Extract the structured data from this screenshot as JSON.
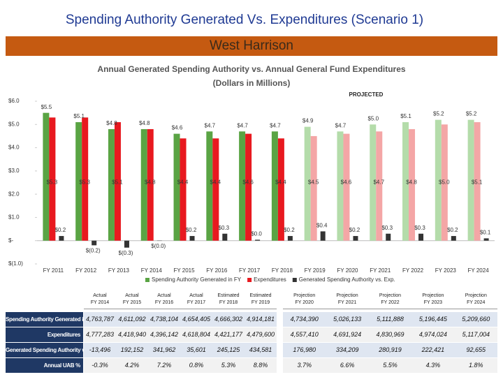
{
  "slide_title": "Spending Authority Generated Vs. Expenditures (Scenario 1)",
  "banner": "West Harrison",
  "chart_data": {
    "type": "bar",
    "title": "Annual Generated Spending Authority vs. Annual General Fund Expenditures",
    "subtitle": "(Dollars in Millions)",
    "annotation": "PROJECTED",
    "categories": [
      "FY 2011",
      "FY 2012",
      "FY 2013",
      "FY 2014",
      "FY 2015",
      "FY 2016",
      "FY 2017",
      "FY 2018",
      "FY 2019",
      "FY 2020",
      "FY 2021",
      "FY 2022",
      "FY 2023",
      "FY 2024"
    ],
    "series": [
      {
        "name": "Spending Authority Generated in FY",
        "color": "#5aa444",
        "colors": [
          "#5aa444",
          "#5aa444",
          "#5aa444",
          "#5aa444",
          "#5aa444",
          "#5aa444",
          "#5aa444",
          "#5aa444",
          "#b4dcaa",
          "#b4dcaa",
          "#b4dcaa",
          "#b4dcaa",
          "#b4dcaa",
          "#b4dcaa"
        ],
        "values": [
          5.5,
          5.1,
          4.8,
          4.8,
          4.6,
          4.7,
          4.7,
          4.7,
          4.9,
          4.7,
          5.0,
          5.1,
          5.2,
          5.2
        ],
        "value_labels": [
          "$5.5",
          "$5.1",
          "$4.8",
          "$4.8",
          "$4.6",
          "$4.7",
          "$4.7",
          "$4.7",
          "$4.9",
          "$4.7",
          "$5.0",
          "$5.1",
          "$5.2",
          "$5.2"
        ]
      },
      {
        "name": "Expenditures",
        "color": "#e8191f",
        "colors": [
          "#e8191f",
          "#e8191f",
          "#e8191f",
          "#e8191f",
          "#e8191f",
          "#e8191f",
          "#e8191f",
          "#e8191f",
          "#f4a6a6",
          "#f4a6a6",
          "#f4a6a6",
          "#f4a6a6",
          "#f4a6a6",
          "#f4a6a6"
        ],
        "values": [
          5.3,
          5.3,
          5.1,
          4.8,
          4.4,
          4.4,
          4.6,
          4.4,
          4.5,
          4.6,
          4.7,
          4.8,
          5.0,
          5.1
        ],
        "value_labels": [
          "$5.3",
          "$5.3",
          "$5.1",
          "$4.8",
          "$4.4",
          "$4.4",
          "$4.6",
          "$4.4",
          "$4.5",
          "$4.6",
          "$4.7",
          "$4.8",
          "$5.0",
          "$5.1"
        ]
      },
      {
        "name": "Generated Spending Authority vs. Exp.",
        "color": "#333333",
        "values": [
          0.2,
          -0.2,
          -0.3,
          -0.01,
          0.2,
          0.3,
          0.04,
          0.2,
          0.4,
          0.2,
          0.3,
          0.3,
          0.2,
          0.1
        ],
        "value_labels": [
          "$0.2",
          "$(0.2)",
          "$(0.3)",
          "$(0.0)",
          "$0.2",
          "$0.3",
          "$0.0",
          "$0.2",
          "$0.4",
          "$0.2",
          "$0.3",
          "$0.3",
          "$0.2",
          "$0.1"
        ]
      }
    ],
    "ylim": [
      -1,
      6
    ],
    "yticks": [
      {
        "value": -1,
        "label": "$(1.0)"
      },
      {
        "value": 0,
        "label": "$-"
      },
      {
        "value": 1,
        "label": "$1.0"
      },
      {
        "value": 2,
        "label": "$2.0"
      },
      {
        "value": 3,
        "label": "$3.0"
      },
      {
        "value": 4,
        "label": "$4.0"
      },
      {
        "value": 5,
        "label": "$5.0"
      },
      {
        "value": 6,
        "label": "$6.0"
      }
    ],
    "legend": "bottom"
  },
  "table": {
    "columns": [
      [
        "Actual",
        "FY 2014"
      ],
      [
        "Actual",
        "FY 2015"
      ],
      [
        "Actual",
        "FY 2016"
      ],
      [
        "Actual",
        "FY 2017"
      ],
      [
        "Estimated",
        "FY 2018"
      ],
      [
        "Estimated",
        "FY 2019"
      ],
      [
        "Projection",
        "FY 2020"
      ],
      [
        "Projection",
        "FY 2021"
      ],
      [
        "Projection",
        "FY 2022"
      ],
      [
        "Projection",
        "FY 2023"
      ],
      [
        "Projection",
        "FY 2024"
      ]
    ],
    "rows": [
      [
        "Spending Authority Generated in FY",
        "4,763,787",
        "4,611,092",
        "4,738,104",
        "4,654,405",
        "4,666,302",
        "4,914,181",
        "4,734,390",
        "5,026,133",
        "5,111,888",
        "5,196,445",
        "5,209,660"
      ],
      [
        "Expenditures",
        "4,777,283",
        "4,418,940",
        "4,396,142",
        "4,618,804",
        "4,421,177",
        "4,479,600",
        "4,557,410",
        "4,691,924",
        "4,830,969",
        "4,974,024",
        "5,117,004"
      ],
      [
        "Generated Spending Authority vs. Exp.",
        "-13,496",
        "192,152",
        "341,962",
        "35,601",
        "245,125",
        "434,581",
        "176,980",
        "334,209",
        "280,919",
        "222,421",
        "92,655"
      ],
      [
        "Annual UAB %",
        "-0.3%",
        "4.2%",
        "7.2%",
        "0.8%",
        "5.3%",
        "8.8%",
        "3.7%",
        "6.6%",
        "5.5%",
        "4.3%",
        "1.8%"
      ]
    ]
  }
}
